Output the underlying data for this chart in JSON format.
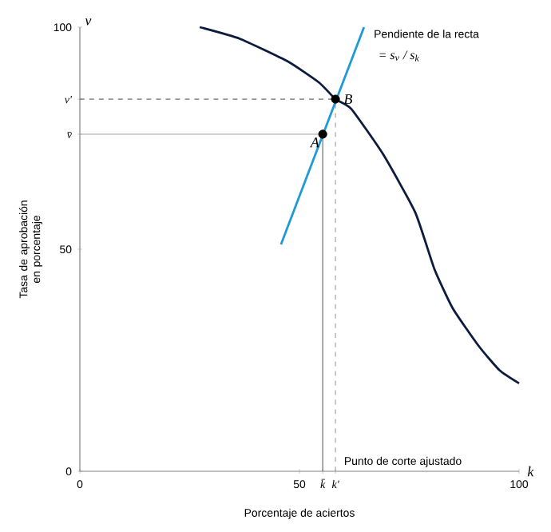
{
  "chart_data": {
    "type": "line",
    "xlabel": "Porcentaje de aciertos",
    "ylabel": "Tasa de aprobación en porcentaje",
    "xlim": [
      0,
      100
    ],
    "ylim": [
      0,
      100
    ],
    "xticks": [
      0,
      50,
      {
        "value": 55.3,
        "label": "k̄"
      },
      {
        "value": 58.2,
        "label": "k'"
      },
      100
    ],
    "yticks": [
      0,
      50,
      {
        "value": 75.9,
        "label": "v̄"
      },
      {
        "value": 83.8,
        "label": "v'"
      },
      100
    ],
    "series": [
      {
        "color": "#a6a6a6",
        "line_style": "solid",
        "x": [
          0,
          55.3
        ],
        "values": [
          75.9,
          75.9
        ]
      },
      {
        "color": "#6e6e6e",
        "line_style": "solid",
        "x": [
          55.3,
          55.3
        ],
        "values": [
          0,
          75.9
        ]
      },
      {
        "color": "#6e6e6e",
        "line_style": "dashed",
        "x": [
          0,
          58.2
        ],
        "values": [
          83.8,
          83.8
        ]
      },
      {
        "color": "#a6a6a6",
        "line_style": "dashed",
        "x": [
          58.2,
          58.2
        ],
        "values": [
          0,
          83.8
        ]
      },
      {
        "color": "#0d1b3e",
        "line_style": "solid",
        "x": [
          27.3,
          36.4,
          47.3,
          54.5,
          58.2,
          61.8,
          69.1,
          76.4,
          80.7,
          84.9,
          90.9,
          95.6,
          100
        ],
        "values": [
          100,
          97.4,
          92.3,
          87.5,
          83.8,
          81.6,
          71.3,
          58.2,
          45.6,
          36.7,
          28.1,
          22.7,
          19.8
        ]
      },
      {
        "color": "#1e9ad6",
        "line_style": "solid",
        "x": [
          45.8,
          64.7
        ],
        "values": [
          51.1,
          100
        ]
      },
      {
        "type": "scatter",
        "color": "#000000",
        "marker": "circle",
        "x": [
          55.3,
          58.2
        ],
        "values": [
          75.9,
          83.8
        ]
      }
    ],
    "annotations": [
      "v",
      "k",
      {
        "text": "A",
        "x": 55.3,
        "y": 75.9
      },
      {
        "text": "B",
        "x": 58.2,
        "y": 83.8
      },
      "Pendiente de la recta",
      "= s$_{v}$ / s$_{k}$",
      {
        "text": "Punto de corte ajustado",
        "x": 59,
        "y": 0.5
      }
    ]
  }
}
